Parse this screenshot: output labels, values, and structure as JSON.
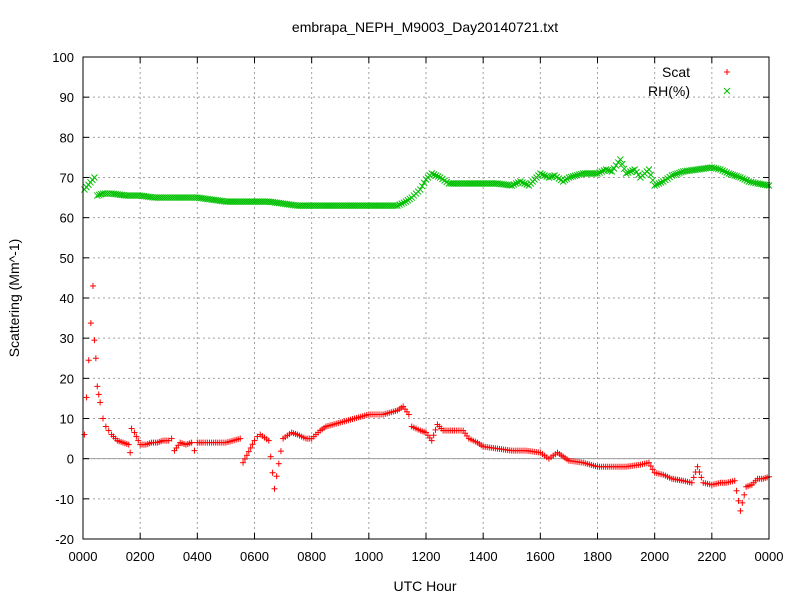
{
  "chart_data": {
    "type": "scatter",
    "title": "embrapa_NEPH_M9003_Day20140721.txt",
    "xlabel": "UTC Hour",
    "ylabel": "Scattering (Mm^-1)",
    "xlim": [
      0,
      24
    ],
    "ylim": [
      -20,
      100
    ],
    "x_ticks": [
      0,
      2,
      4,
      6,
      8,
      10,
      12,
      14,
      16,
      18,
      20,
      22,
      24
    ],
    "x_tick_labels": [
      "0000",
      "0200",
      "0400",
      "0600",
      "0800",
      "1000",
      "1200",
      "1400",
      "1600",
      "1800",
      "2000",
      "2200",
      "0000"
    ],
    "y_ticks": [
      -20,
      -10,
      0,
      10,
      20,
      30,
      40,
      50,
      60,
      70,
      80,
      90,
      100
    ],
    "y_tick_labels": [
      "-20",
      "-10",
      "0",
      "10",
      "20",
      "30",
      "40",
      "50",
      "60",
      "70",
      "80",
      "90",
      "100"
    ],
    "grid": true,
    "zero_line": 0,
    "legend_position": "top-right",
    "colors": {
      "scat": "#ff0000",
      "rh": "#00c000",
      "grid": "#a0a0a0",
      "axis": "#000000"
    },
    "series": [
      {
        "name": "Scat",
        "marker": "+",
        "x": [
          0.05,
          0.35,
          0.4,
          0.45,
          0.5,
          0.55,
          0.6,
          0.7,
          0.8,
          0.9,
          1.0,
          1.2,
          1.4,
          1.6,
          1.65,
          1.7,
          1.8,
          2.0,
          2.2,
          2.4,
          2.6,
          2.8,
          3.0,
          3.1,
          3.2,
          3.4,
          3.6,
          3.8,
          3.9,
          4.0,
          4.2,
          4.5,
          5.0,
          5.5,
          5.6,
          6.0,
          6.1,
          6.2,
          6.5,
          6.7,
          7.0,
          7.3,
          7.5,
          7.8,
          8.0,
          8.3,
          8.5,
          9.0,
          9.5,
          10.0,
          10.5,
          11.0,
          11.2,
          11.4,
          11.5,
          11.8,
          12.0,
          12.2,
          12.4,
          12.6,
          13.0,
          13.3,
          13.5,
          13.8,
          14.0,
          14.5,
          15.0,
          15.5,
          16.0,
          16.3,
          16.6,
          16.8,
          17.0,
          17.5,
          18.0,
          18.5,
          19.0,
          19.5,
          19.8,
          20.0,
          20.3,
          20.6,
          21.0,
          21.3,
          21.5,
          21.7,
          22.0,
          22.3,
          22.5,
          22.8,
          23.0,
          23.2,
          23.4,
          23.6,
          23.8,
          24.0
        ],
        "y": [
          6,
          43,
          29.5,
          25,
          18,
          16,
          14,
          10,
          8,
          7,
          6,
          4.5,
          4,
          3.5,
          1.5,
          7.5,
          6.5,
          3.5,
          3.5,
          4,
          4,
          4.5,
          4.5,
          5,
          2,
          4,
          3.5,
          4,
          2,
          4,
          4,
          4,
          4,
          5,
          -1,
          4.5,
          5.5,
          6,
          4.5,
          -7.5,
          5,
          6.5,
          6,
          5,
          5,
          7,
          8,
          9,
          10,
          11,
          11,
          12,
          13,
          11,
          8,
          7,
          6.5,
          4.5,
          8.5,
          7,
          7,
          7,
          5,
          4,
          3,
          2.5,
          2,
          2,
          1.5,
          0,
          1.5,
          0.5,
          -0.5,
          -1,
          -2,
          -2,
          -2,
          -1.5,
          -1,
          -3.5,
          -4,
          -5,
          -5.5,
          -6,
          -2,
          -6,
          -6.5,
          -6,
          -6,
          -5.5,
          -13,
          -7,
          -6.5,
          -5,
          -5,
          -4.5
        ]
      },
      {
        "name": "RH(%)",
        "marker": "x",
        "x": [
          0.05,
          0.4,
          0.5,
          0.7,
          1.0,
          1.5,
          2.0,
          2.5,
          3.0,
          3.5,
          4.0,
          4.5,
          5.0,
          5.5,
          6.0,
          6.5,
          7.0,
          7.5,
          8.0,
          8.5,
          9.0,
          9.5,
          10.0,
          10.5,
          11.0,
          11.3,
          11.5,
          11.8,
          12.0,
          12.2,
          12.5,
          12.8,
          13.0,
          13.5,
          14.0,
          14.5,
          15.0,
          15.3,
          15.6,
          16.0,
          16.3,
          16.5,
          16.8,
          17.0,
          17.5,
          18.0,
          18.3,
          18.5,
          18.8,
          19.0,
          19.3,
          19.5,
          19.8,
          20.0,
          20.3,
          20.6,
          21.0,
          21.5,
          22.0,
          22.3,
          22.6,
          23.0,
          23.3,
          23.6,
          24.0
        ],
        "y": [
          67,
          70,
          65.5,
          66,
          66,
          65.5,
          65.5,
          65,
          65,
          65,
          65,
          64.5,
          64,
          64,
          64,
          64,
          63.5,
          63,
          63,
          63,
          63,
          63,
          63,
          63,
          63,
          64,
          65,
          67,
          69.5,
          71,
          70,
          68.5,
          68.5,
          68.5,
          68.5,
          68.5,
          68,
          69,
          68,
          71,
          70,
          70.5,
          69,
          70,
          71,
          71,
          72,
          71.5,
          74.5,
          71,
          72,
          70,
          72,
          68,
          69,
          70.5,
          71.5,
          72,
          72.5,
          72,
          71,
          70,
          69,
          68.5,
          68
        ]
      }
    ]
  }
}
